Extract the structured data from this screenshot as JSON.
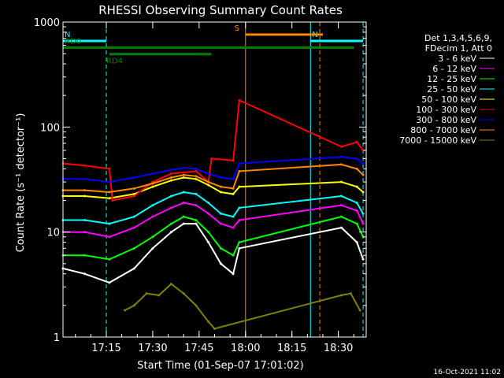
{
  "chart_data": {
    "type": "line",
    "title": "RHESSI Observing Summary Count Rates",
    "xlabel": "Start Time (01-Sep-07 17:01:02)",
    "ylabel": "Count Rate (s⁻¹ detector⁻¹)",
    "y_scale": "log",
    "ylim": [
      1,
      1000
    ],
    "xlim": [
      "17:01",
      "18:39"
    ],
    "x_ticks": [
      "17:15",
      "17:30",
      "17:45",
      "18:00",
      "18:15",
      "18:30"
    ],
    "y_ticks": [
      "1",
      "10",
      "100",
      "1000"
    ],
    "grid": false,
    "legend_position": "top-right",
    "legend_header": [
      "Det 1,3,4,5,6,9,",
      "FDecim 1, Att 0"
    ],
    "series": [
      {
        "name": "3 - 6 keV",
        "color": "#ffffff",
        "x": [
          "17:01",
          "17:08",
          "17:16",
          "17:24",
          "17:30",
          "17:36",
          "17:40",
          "17:44",
          "17:48",
          "17:52",
          "17:56",
          "17:58",
          "18:31",
          "18:36",
          "18:38"
        ],
        "y": [
          4.5,
          4.0,
          3.3,
          4.5,
          7,
          10,
          12,
          12,
          8,
          5,
          4,
          7,
          11,
          8,
          5.5
        ]
      },
      {
        "name": "6 - 12 keV",
        "color": "#ff00ff",
        "x": [
          "17:01",
          "17:08",
          "17:16",
          "17:24",
          "17:30",
          "17:36",
          "17:40",
          "17:44",
          "17:48",
          "17:52",
          "17:56",
          "17:58",
          "18:31",
          "18:36",
          "18:38"
        ],
        "y": [
          10,
          10,
          9,
          11,
          14,
          17,
          19,
          18,
          15,
          12,
          11,
          13,
          18,
          16,
          12
        ]
      },
      {
        "name": "12 - 25 keV",
        "color": "#00ff00",
        "x": [
          "17:01",
          "17:08",
          "17:16",
          "17:24",
          "17:30",
          "17:36",
          "17:40",
          "17:44",
          "17:48",
          "17:52",
          "17:56",
          "17:58",
          "18:31",
          "18:36",
          "18:38"
        ],
        "y": [
          6,
          6,
          5.5,
          7,
          9,
          12,
          14,
          13,
          10,
          7,
          6,
          8,
          14,
          12,
          9
        ]
      },
      {
        "name": "25 - 50 keV",
        "color": "#00ffff",
        "x": [
          "17:01",
          "17:08",
          "17:16",
          "17:24",
          "17:30",
          "17:36",
          "17:40",
          "17:44",
          "17:48",
          "17:52",
          "17:56",
          "17:58",
          "18:31",
          "18:36",
          "18:38"
        ],
        "y": [
          13,
          13,
          12,
          14,
          18,
          22,
          24,
          23,
          19,
          15,
          14,
          17,
          22,
          19,
          15
        ]
      },
      {
        "name": "50 - 100 keV",
        "color": "#ffff00",
        "x": [
          "17:01",
          "17:08",
          "17:16",
          "17:24",
          "17:30",
          "17:36",
          "17:40",
          "17:44",
          "17:48",
          "17:52",
          "17:56",
          "17:58",
          "18:31",
          "18:36",
          "18:38"
        ],
        "y": [
          22,
          22,
          21,
          23,
          27,
          31,
          33,
          32,
          28,
          24,
          23,
          27,
          30,
          27,
          24
        ]
      },
      {
        "name": "100 - 300 keV",
        "color": "#ff0000",
        "x": [
          "17:01",
          "17:08",
          "17:16",
          "17:17",
          "17:24",
          "17:30",
          "17:36",
          "17:44",
          "17:48",
          "17:49",
          "17:56",
          "17:58",
          "18:31",
          "18:36",
          "18:38"
        ],
        "y": [
          45,
          43,
          40,
          20,
          22,
          30,
          36,
          38,
          30,
          50,
          48,
          180,
          65,
          72,
          60
        ]
      },
      {
        "name": "300 - 800 keV",
        "color": "#0000ff",
        "x": [
          "17:01",
          "17:08",
          "17:16",
          "17:24",
          "17:30",
          "17:36",
          "17:40",
          "17:44",
          "17:48",
          "17:52",
          "17:56",
          "17:58",
          "18:31",
          "18:36",
          "18:38"
        ],
        "y": [
          32,
          32,
          30,
          33,
          36,
          39,
          41,
          40,
          36,
          33,
          32,
          45,
          52,
          50,
          45
        ]
      },
      {
        "name": "800 - 7000 keV",
        "color": "#ff8800",
        "x": [
          "17:01",
          "17:08",
          "17:16",
          "17:24",
          "17:30",
          "17:36",
          "17:40",
          "17:44",
          "17:48",
          "17:52",
          "17:56",
          "17:58",
          "18:31",
          "18:36",
          "18:38"
        ],
        "y": [
          25,
          25,
          24,
          26,
          29,
          33,
          35,
          34,
          30,
          27,
          26,
          38,
          44,
          40,
          35
        ]
      },
      {
        "name": "7000 - 15000 keV",
        "color": "#808000",
        "x": [
          "17:21",
          "17:24",
          "17:28",
          "17:32",
          "17:36",
          "17:40",
          "17:44",
          "17:48",
          "17:50",
          "18:31",
          "18:34",
          "18:37"
        ],
        "y": [
          1.8,
          2.0,
          2.6,
          2.5,
          3.2,
          2.6,
          2.0,
          1.4,
          1.2,
          2.5,
          2.6,
          1.8
        ]
      }
    ],
    "annotations": {
      "markers": [
        {
          "label": "N",
          "color": "#00ffff",
          "start": "17:01",
          "end": "17:15",
          "level": 660
        },
        {
          "label": "N",
          "color": "#00ffff",
          "start": "18:21",
          "end": "18:38",
          "level": 660
        },
        {
          "label": "S",
          "color": "#ff8800",
          "start": "18:00",
          "end": "18:25",
          "level": 760
        },
        {
          "label": "RD0",
          "color": "#008000",
          "start": "17:01",
          "end": "18:35",
          "level": 570
        },
        {
          "label": "RD4",
          "color": "#008000",
          "start": "17:16",
          "end": "17:49",
          "level": 495
        }
      ],
      "vertical_lines": [
        {
          "time": "17:01",
          "color": "#00ffff",
          "style": "solid"
        },
        {
          "time": "17:15",
          "color": "#00ffff",
          "style": "dashed"
        },
        {
          "time": "18:00",
          "color": "#ff8800",
          "style": "solid"
        },
        {
          "time": "18:21",
          "color": "#00ffff",
          "style": "solid"
        },
        {
          "time": "18:24",
          "color": "#ff8800",
          "style": "dashed"
        },
        {
          "time": "18:38",
          "color": "#00ffff",
          "style": "dashed"
        }
      ]
    }
  },
  "footer": {
    "timestamp": "16-Oct-2021 11:02"
  }
}
